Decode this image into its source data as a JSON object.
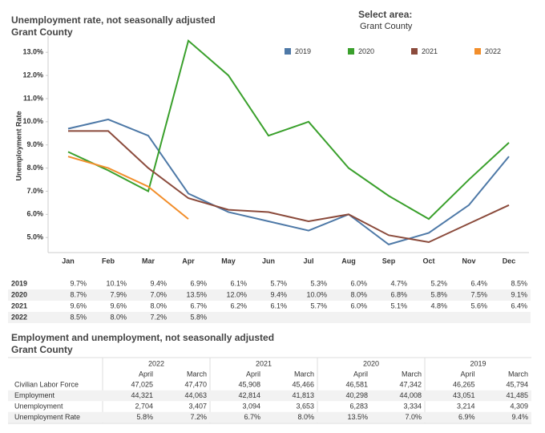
{
  "chart_data": {
    "type": "line",
    "title": "Unemployment rate, not seasonally adjusted",
    "subtitle": "Grant County",
    "filter_label": "Select area:",
    "filter_value": "Grant County",
    "y_label": "Unemployment Rate",
    "categories": [
      "Jan",
      "Feb",
      "Mar",
      "Apr",
      "May",
      "Jun",
      "Jul",
      "Aug",
      "Sep",
      "Oct",
      "Nov",
      "Dec"
    ],
    "series": [
      {
        "name": "2019",
        "color": "#4e79a7",
        "values": [
          9.7,
          10.1,
          9.4,
          6.9,
          6.1,
          5.7,
          5.3,
          6.0,
          4.7,
          5.2,
          6.4,
          8.5
        ],
        "value_labels": [
          "9.7%",
          "10.1%",
          "9.4%",
          "6.9%",
          "6.1%",
          "5.7%",
          "5.3%",
          "6.0%",
          "4.7%",
          "5.2%",
          "6.4%",
          "8.5%"
        ]
      },
      {
        "name": "2020",
        "color": "#3aa02c",
        "values": [
          8.7,
          7.9,
          7.0,
          13.5,
          12.0,
          9.4,
          10.0,
          8.0,
          6.8,
          5.8,
          7.5,
          9.1
        ],
        "value_labels": [
          "8.7%",
          "7.9%",
          "7.0%",
          "13.5%",
          "12.0%",
          "9.4%",
          "10.0%",
          "8.0%",
          "6.8%",
          "5.8%",
          "7.5%",
          "9.1%"
        ]
      },
      {
        "name": "2021",
        "color": "#8b4b3c",
        "values": [
          9.6,
          9.6,
          8.0,
          6.7,
          6.2,
          6.1,
          5.7,
          6.0,
          5.1,
          4.8,
          5.6,
          6.4
        ],
        "value_labels": [
          "9.6%",
          "9.6%",
          "8.0%",
          "6.7%",
          "6.2%",
          "6.1%",
          "5.7%",
          "6.0%",
          "5.1%",
          "4.8%",
          "5.6%",
          "6.4%"
        ]
      },
      {
        "name": "2022",
        "color": "#f28e2b",
        "values": [
          8.5,
          8.0,
          7.2,
          5.8,
          null,
          null,
          null,
          null,
          null,
          null,
          null,
          null
        ],
        "value_labels": [
          "8.5%",
          "8.0%",
          "7.2%",
          "5.8%",
          null,
          null,
          null,
          null,
          null,
          null,
          null,
          null
        ]
      }
    ],
    "ylim": [
      4.35,
      13.7
    ],
    "yticks": [
      {
        "value": 5,
        "label": "5.0%"
      },
      {
        "value": 6,
        "label": "6.0%"
      },
      {
        "value": 7,
        "label": "7.0%"
      },
      {
        "value": 8,
        "label": "8.0%"
      },
      {
        "value": 9,
        "label": "9.0%"
      },
      {
        "value": 10,
        "label": "10.0%"
      },
      {
        "value": 11,
        "label": "11.0%"
      },
      {
        "value": 12,
        "label": "12.0%"
      },
      {
        "value": 13,
        "label": "13.0%"
      }
    ],
    "grid": false,
    "legend": "top-right"
  },
  "employment_table": {
    "title": "Employment and unemployment, not seasonally adjusted",
    "subtitle": "Grant County",
    "groups": [
      {
        "year": "2022",
        "columns": [
          "April",
          "March"
        ]
      },
      {
        "year": "2021",
        "columns": [
          "April",
          "March"
        ]
      },
      {
        "year": "2020",
        "columns": [
          "April",
          "March"
        ]
      },
      {
        "year": "2019",
        "columns": [
          "April",
          "March"
        ]
      }
    ],
    "rows": [
      {
        "label": "Civilian Labor Force",
        "cells": [
          "47,025",
          "47,470",
          "45,908",
          "45,466",
          "46,581",
          "47,342",
          "46,265",
          "45,794"
        ]
      },
      {
        "label": "Employment",
        "cells": [
          "44,321",
          "44,063",
          "42,814",
          "41,813",
          "40,298",
          "44,008",
          "43,051",
          "41,485"
        ]
      },
      {
        "label": "Unemployment",
        "cells": [
          "2,704",
          "3,407",
          "3,094",
          "3,653",
          "6,283",
          "3,334",
          "3,214",
          "4,309"
        ]
      },
      {
        "label": "Unemployment Rate",
        "cells": [
          "5.8%",
          "7.2%",
          "6.7%",
          "8.0%",
          "13.5%",
          "7.0%",
          "6.9%",
          "9.4%"
        ]
      }
    ]
  }
}
